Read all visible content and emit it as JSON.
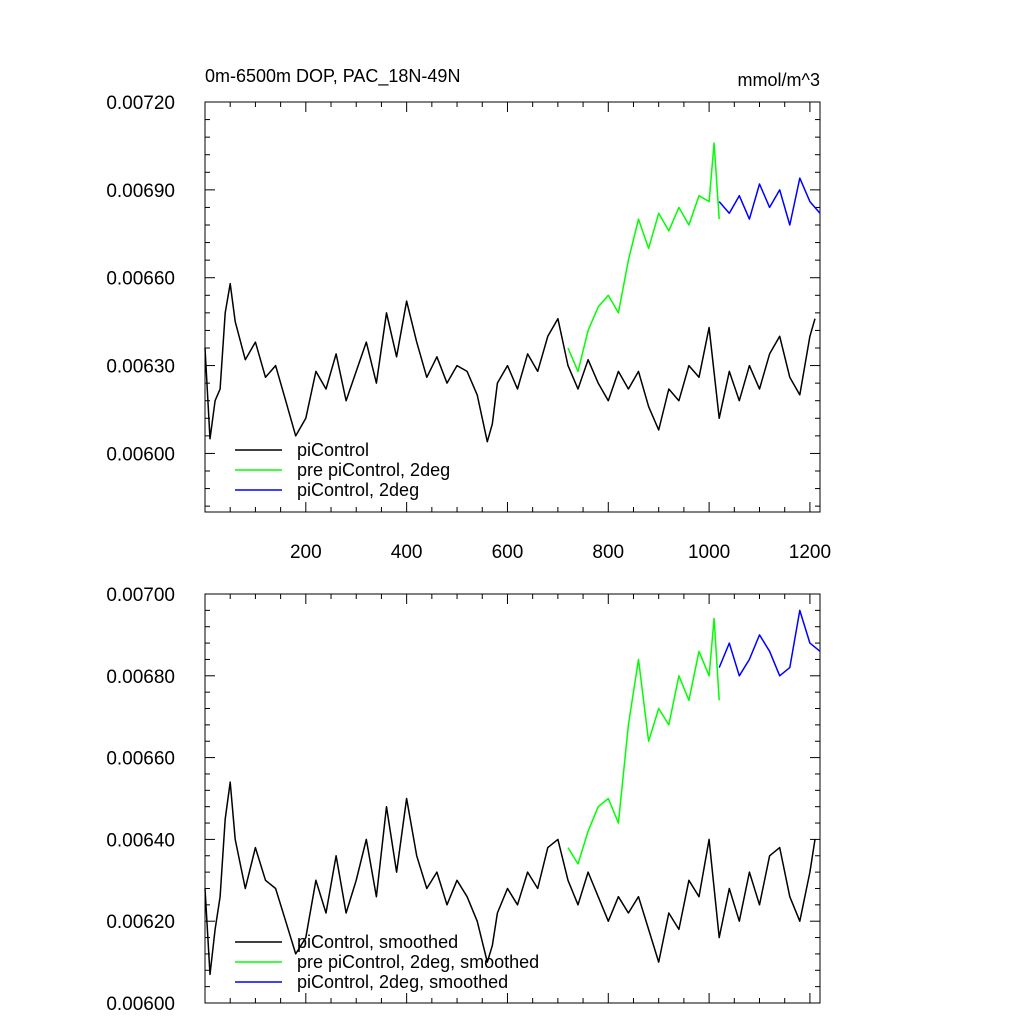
{
  "chart_data": [
    {
      "type": "line",
      "title": "0m-6500m DOP, PAC_18N-49N",
      "units": "mmol/m^3",
      "xlabel": "",
      "ylabel": "",
      "xlim": [
        0,
        1220
      ],
      "ylim": [
        0.0058,
        0.0072
      ],
      "x_ticks": [
        200,
        400,
        600,
        800,
        1000,
        1200
      ],
      "x_tick_labels": [
        "200",
        "400",
        "600",
        "800",
        "1000",
        "1200"
      ],
      "y_ticks": [
        0.006,
        0.0063,
        0.0066,
        0.0069,
        0.0072
      ],
      "y_tick_labels": [
        "0.00600",
        "0.00630",
        "0.00660",
        "0.00690",
        "0.00720"
      ],
      "legend_position": "bottom-left",
      "series": [
        {
          "name": "piControl",
          "color": "#000000",
          "x": [
            0,
            10,
            20,
            30,
            40,
            50,
            60,
            80,
            100,
            120,
            140,
            160,
            180,
            200,
            220,
            240,
            260,
            280,
            300,
            320,
            340,
            360,
            380,
            400,
            420,
            440,
            460,
            480,
            500,
            520,
            540,
            560,
            570,
            580,
            600,
            620,
            640,
            660,
            680,
            700,
            720,
            740,
            760,
            780,
            800,
            820,
            840,
            860,
            880,
            900,
            920,
            940,
            960,
            980,
            1000,
            1020,
            1040,
            1060,
            1080,
            1100,
            1120,
            1140,
            1160,
            1180,
            1200,
            1210
          ],
          "y": [
            0.00636,
            0.00605,
            0.00618,
            0.00622,
            0.00648,
            0.00658,
            0.00645,
            0.00632,
            0.00638,
            0.00626,
            0.0063,
            0.00618,
            0.00606,
            0.00612,
            0.00628,
            0.00622,
            0.00634,
            0.00618,
            0.00628,
            0.00638,
            0.00624,
            0.00648,
            0.00633,
            0.00652,
            0.00638,
            0.00626,
            0.00633,
            0.00624,
            0.0063,
            0.00628,
            0.0062,
            0.00604,
            0.0061,
            0.00624,
            0.0063,
            0.00622,
            0.00634,
            0.00628,
            0.0064,
            0.00646,
            0.0063,
            0.00622,
            0.00632,
            0.00624,
            0.00618,
            0.00628,
            0.00622,
            0.00628,
            0.00616,
            0.00608,
            0.00622,
            0.00618,
            0.0063,
            0.00626,
            0.00643,
            0.00612,
            0.00628,
            0.00618,
            0.0063,
            0.00622,
            0.00634,
            0.0064,
            0.00626,
            0.0062,
            0.0064,
            0.00646
          ]
        },
        {
          "name": "pre piControl, 2deg",
          "color": "#00ff00",
          "x": [
            720,
            740,
            760,
            780,
            800,
            820,
            840,
            860,
            880,
            900,
            920,
            940,
            960,
            980,
            1000,
            1010,
            1020
          ],
          "y": [
            0.00636,
            0.00628,
            0.00642,
            0.0065,
            0.00654,
            0.00648,
            0.00666,
            0.0068,
            0.0067,
            0.00682,
            0.00676,
            0.00684,
            0.00678,
            0.00688,
            0.00686,
            0.00706,
            0.0068
          ]
        },
        {
          "name": "piControl, 2deg",
          "color": "#0000ff",
          "x": [
            1020,
            1040,
            1060,
            1080,
            1100,
            1120,
            1140,
            1160,
            1180,
            1200,
            1220
          ],
          "y": [
            0.00686,
            0.00682,
            0.00688,
            0.0068,
            0.00692,
            0.00684,
            0.0069,
            0.00678,
            0.00694,
            0.00686,
            0.00682
          ]
        }
      ]
    },
    {
      "type": "line",
      "title": "",
      "xlabel": "",
      "ylabel": "",
      "xlim": [
        0,
        1220
      ],
      "ylim": [
        0.006,
        0.007
      ],
      "x_ticks": [
        200,
        400,
        600,
        800,
        1000,
        1200
      ],
      "x_tick_labels": [
        "",
        "",
        "",
        "",
        "",
        ""
      ],
      "y_ticks": [
        0.006,
        0.0062,
        0.0064,
        0.0066,
        0.0068,
        0.007
      ],
      "y_tick_labels": [
        "0.00600",
        "0.00620",
        "0.00640",
        "0.00660",
        "0.00680",
        "0.00700"
      ],
      "legend_position": "bottom-left",
      "series": [
        {
          "name": "piControl, smoothed",
          "color": "#000000",
          "x": [
            0,
            10,
            20,
            30,
            40,
            50,
            60,
            80,
            100,
            120,
            140,
            160,
            180,
            200,
            220,
            240,
            260,
            280,
            300,
            320,
            340,
            360,
            380,
            400,
            420,
            440,
            460,
            480,
            500,
            520,
            540,
            560,
            570,
            580,
            600,
            620,
            640,
            660,
            680,
            700,
            720,
            740,
            760,
            780,
            800,
            820,
            840,
            860,
            880,
            900,
            920,
            940,
            960,
            980,
            1000,
            1020,
            1040,
            1060,
            1080,
            1100,
            1120,
            1140,
            1160,
            1180,
            1200,
            1210
          ],
          "y": [
            0.00628,
            0.00607,
            0.00618,
            0.00626,
            0.00645,
            0.00654,
            0.0064,
            0.00628,
            0.00638,
            0.0063,
            0.00628,
            0.0062,
            0.00612,
            0.00616,
            0.0063,
            0.00622,
            0.00636,
            0.00622,
            0.0063,
            0.0064,
            0.00626,
            0.00648,
            0.00632,
            0.0065,
            0.00636,
            0.00628,
            0.00632,
            0.00624,
            0.0063,
            0.00626,
            0.0062,
            0.0061,
            0.00614,
            0.00622,
            0.00628,
            0.00624,
            0.00632,
            0.00628,
            0.00638,
            0.0064,
            0.0063,
            0.00624,
            0.00632,
            0.00626,
            0.0062,
            0.00626,
            0.00622,
            0.00626,
            0.00618,
            0.0061,
            0.00622,
            0.00618,
            0.0063,
            0.00626,
            0.0064,
            0.00616,
            0.00628,
            0.0062,
            0.00632,
            0.00624,
            0.00636,
            0.00638,
            0.00626,
            0.0062,
            0.00632,
            0.0064
          ]
        },
        {
          "name": "pre piControl, 2deg, smoothed",
          "color": "#00ff00",
          "x": [
            720,
            740,
            760,
            780,
            800,
            820,
            840,
            860,
            880,
            900,
            920,
            940,
            960,
            980,
            1000,
            1010,
            1020
          ],
          "y": [
            0.00638,
            0.00634,
            0.00642,
            0.00648,
            0.0065,
            0.00644,
            0.00668,
            0.00684,
            0.00664,
            0.00672,
            0.00668,
            0.0068,
            0.00674,
            0.00686,
            0.0068,
            0.00694,
            0.00674
          ]
        },
        {
          "name": "piControl, 2deg, smoothed",
          "color": "#0000ff",
          "x": [
            1020,
            1040,
            1060,
            1080,
            1100,
            1120,
            1140,
            1160,
            1180,
            1200,
            1220
          ],
          "y": [
            0.00682,
            0.00688,
            0.0068,
            0.00684,
            0.0069,
            0.00686,
            0.0068,
            0.00682,
            0.00696,
            0.00688,
            0.00686
          ]
        }
      ]
    }
  ]
}
